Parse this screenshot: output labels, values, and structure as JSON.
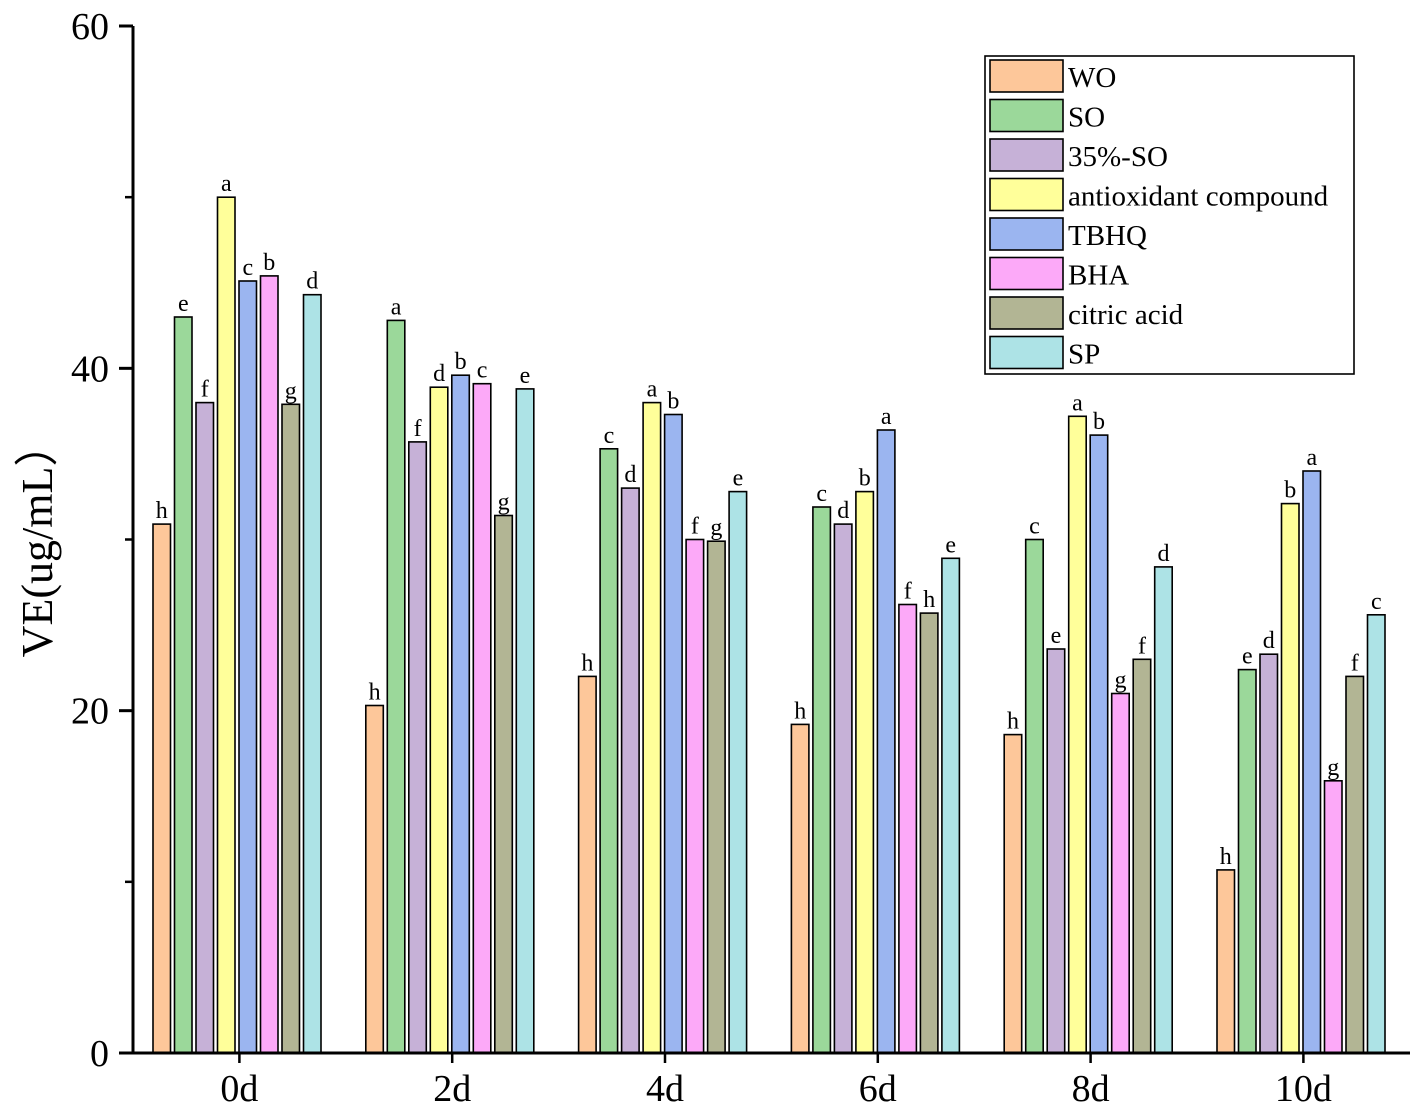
{
  "chart_data": {
    "type": "bar",
    "title": "",
    "xlabel": "",
    "ylabel": "VE(ug/mL）",
    "ylim": [
      0,
      60
    ],
    "yticks": [
      0,
      20,
      40,
      60
    ],
    "grid": false,
    "legend_position": "top-right",
    "categories": [
      "0d",
      "2d",
      "4d",
      "6d",
      "8d",
      "10d"
    ],
    "series": [
      {
        "name": "WO",
        "color": "#fdc79a",
        "values": [
          30.9,
          20.3,
          22.0,
          19.2,
          18.6,
          10.7
        ],
        "letters": [
          "h",
          "h",
          "h",
          "h",
          "h",
          "h"
        ]
      },
      {
        "name": "SO",
        "color": "#9bd89a",
        "values": [
          43.0,
          42.8,
          35.3,
          31.9,
          30.0,
          22.4
        ],
        "letters": [
          "e",
          "a",
          "c",
          "c",
          "c",
          "e"
        ]
      },
      {
        "name": "35%-SO",
        "color": "#c6b1d7",
        "values": [
          38.0,
          35.7,
          33.0,
          30.9,
          23.6,
          23.3
        ],
        "letters": [
          "f",
          "f",
          "d",
          "d",
          "e",
          "d"
        ]
      },
      {
        "name": "antioxidant compound",
        "color": "#ffff9a",
        "values": [
          50.0,
          38.9,
          38.0,
          32.8,
          37.2,
          32.1
        ],
        "letters": [
          "a",
          "d",
          "a",
          "b",
          "a",
          "b"
        ]
      },
      {
        "name": "TBHQ",
        "color": "#9bb5f0",
        "values": [
          45.1,
          39.6,
          37.3,
          36.4,
          36.1,
          34.0
        ],
        "letters": [
          "c",
          "b",
          "b",
          "a",
          "b",
          "a"
        ]
      },
      {
        "name": "BHA",
        "color": "#fca9f8",
        "values": [
          45.4,
          39.1,
          30.0,
          26.2,
          21.0,
          15.9
        ],
        "letters": [
          "b",
          "c",
          "f",
          "f",
          "g",
          "g"
        ]
      },
      {
        "name": "citric acid",
        "color": "#b2b594",
        "values": [
          37.9,
          31.4,
          29.9,
          25.7,
          23.0,
          22.0
        ],
        "letters": [
          "g",
          "g",
          "g",
          "h",
          "f",
          "f"
        ]
      },
      {
        "name": "SP",
        "color": "#ade3e6",
        "values": [
          44.3,
          38.8,
          32.8,
          28.9,
          28.4,
          25.6
        ],
        "letters": [
          "d",
          "e",
          "e",
          "e",
          "d",
          "c"
        ]
      }
    ]
  }
}
